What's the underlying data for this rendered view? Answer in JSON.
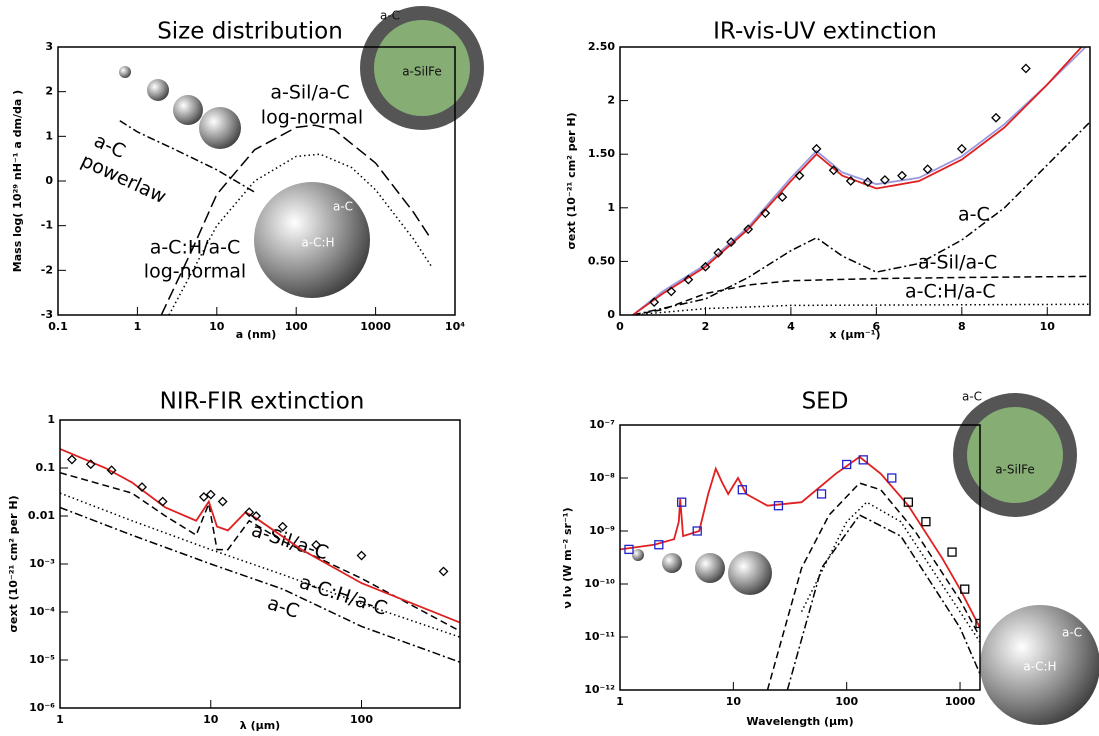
{
  "chart_data": [
    {
      "type": "line",
      "title": "Size distribution",
      "xlabel": "a (nm)",
      "ylabel": "Mass log( 10²⁹ nH⁻¹ a dm/da )",
      "xscale": "log",
      "xlim": [
        0.1,
        10000
      ],
      "ylim": [
        -3,
        3
      ],
      "xticks": [
        0.1,
        1,
        10,
        100,
        1000,
        {
          "value": 10000,
          "label": "10⁴"
        }
      ],
      "yticks": [
        -3,
        -2,
        -1,
        0,
        1,
        2,
        3
      ],
      "annotations": [
        "a-Sil/a-C",
        "log-normal",
        "a-C",
        "powerlaw",
        "a-C:H/a-C",
        "log-normal"
      ],
      "sphere_labels": [
        "a-C",
        "a-SilFe",
        "a-C",
        "a-C:H"
      ],
      "series": [
        {
          "color": "#000",
          "style": "dashdot",
          "x": [
            0.6,
            1,
            3,
            10,
            30
          ],
          "values": [
            1.35,
            1.1,
            0.7,
            0.25,
            -0.25
          ]
        },
        {
          "color": "#000",
          "style": "longdash",
          "x": [
            2,
            5,
            10,
            30,
            100,
            170,
            300,
            1000,
            3000,
            5000
          ],
          "values": [
            -3,
            -1.5,
            -0.3,
            0.7,
            1.2,
            1.25,
            1.15,
            0.4,
            -0.7,
            -1.3
          ]
        },
        {
          "color": "#000",
          "style": "dot",
          "x": [
            2.5,
            10,
            30,
            100,
            200,
            500,
            1000,
            3000,
            5000
          ],
          "values": [
            -3,
            -1,
            0,
            0.55,
            0.6,
            0.3,
            -0.2,
            -1.3,
            -1.9
          ]
        }
      ]
    },
    {
      "type": "line",
      "title": "IR-vis-UV extinction",
      "xlabel": "x (μm⁻¹)",
      "ylabel": "σext (10⁻²¹ cm² per H)",
      "xlim": [
        0,
        11
      ],
      "ylim": [
        0,
        2.5
      ],
      "xticks": [
        0,
        2,
        4,
        6,
        8,
        10
      ],
      "yticks": [
        0,
        {
          "value": 0.5,
          "label": "0.50"
        },
        1,
        {
          "value": 1.5,
          "label": "1.50"
        },
        2,
        {
          "value": 2.5,
          "label": "2.50"
        }
      ],
      "annotations": [
        "a-C",
        "a-Sil/a-C",
        "a-C:H/a-C"
      ],
      "series": [
        {
          "color": "#000",
          "style": "dashdot",
          "x": [
            0.3,
            2,
            3,
            4,
            4.6,
            5.2,
            6,
            7,
            8,
            9,
            10,
            11
          ],
          "values": [
            0,
            0.15,
            0.35,
            0.6,
            0.72,
            0.55,
            0.4,
            0.48,
            0.7,
            1.0,
            1.4,
            1.8
          ]
        },
        {
          "color": "#000",
          "style": "dash",
          "x": [
            0.3,
            1,
            2,
            3,
            4,
            6,
            8,
            11
          ],
          "values": [
            0,
            0.05,
            0.2,
            0.28,
            0.32,
            0.34,
            0.35,
            0.36
          ]
        },
        {
          "color": "#000",
          "style": "dot",
          "x": [
            0.3,
            2,
            4,
            11
          ],
          "values": [
            0,
            0.06,
            0.09,
            0.1
          ]
        },
        {
          "color": "#9999dd",
          "style": "solid",
          "x": [
            0.3,
            1,
            2,
            3,
            4,
            4.6,
            5.2,
            6,
            7,
            8,
            9,
            10,
            10.9
          ],
          "values": [
            0,
            0.22,
            0.47,
            0.82,
            1.28,
            1.53,
            1.33,
            1.22,
            1.28,
            1.48,
            1.78,
            2.15,
            2.5
          ]
        },
        {
          "color": "#e02020",
          "style": "solid",
          "x": [
            0.3,
            1,
            2,
            3,
            4,
            4.6,
            5.2,
            6,
            7,
            8,
            9,
            10,
            10.8
          ],
          "values": [
            0,
            0.2,
            0.45,
            0.8,
            1.25,
            1.5,
            1.3,
            1.18,
            1.25,
            1.45,
            1.75,
            2.15,
            2.5
          ]
        },
        {
          "color": "#000",
          "marker": "diamond",
          "x": [
            0.8,
            1.2,
            1.6,
            2,
            2.3,
            2.6,
            3,
            3.4,
            3.8,
            4.2,
            4.6,
            5,
            5.4,
            5.8,
            6.2,
            6.6,
            7.2,
            8,
            8.8,
            9.5
          ],
          "values": [
            0.12,
            0.22,
            0.33,
            0.45,
            0.58,
            0.68,
            0.8,
            0.95,
            1.1,
            1.3,
            1.55,
            1.35,
            1.25,
            1.24,
            1.26,
            1.3,
            1.36,
            1.55,
            1.84,
            2.3
          ]
        }
      ]
    },
    {
      "type": "line",
      "title": "NIR-FIR extinction",
      "xlabel": "λ (μm)",
      "ylabel": "σext (10⁻²¹ cm² per H)",
      "xscale": "log",
      "yscale": "log",
      "xlim": [
        1,
        450
      ],
      "ylim": [
        1e-06,
        1
      ],
      "xticks": [
        1,
        10,
        100
      ],
      "yticks": [
        {
          "value": 1e-06,
          "label": "10⁻⁶"
        },
        {
          "value": 1e-05,
          "label": "10⁻⁵"
        },
        {
          "value": 0.0001,
          "label": "10⁻⁴"
        },
        {
          "value": 0.001,
          "label": "10⁻³"
        },
        0.01,
        0.1,
        1
      ],
      "annotations": [
        "a-Sil/a-C",
        "a-C:H/a-C",
        "a-C"
      ],
      "series": [
        {
          "color": "#000",
          "style": "dash",
          "x": [
            1,
            3,
            5,
            8,
            9.7,
            11,
            13,
            18,
            30,
            100,
            450
          ],
          "values": [
            0.08,
            0.03,
            0.01,
            0.004,
            0.018,
            0.002,
            0.002,
            0.008,
            0.003,
            0.0005,
            4e-05
          ]
        },
        {
          "color": "#000",
          "style": "dot",
          "x": [
            1,
            3,
            10,
            30,
            100,
            450
          ],
          "values": [
            0.03,
            0.008,
            0.002,
            0.0006,
            0.00015,
            3e-05
          ]
        },
        {
          "color": "#000",
          "style": "dashdot",
          "x": [
            1,
            3,
            10,
            30,
            100,
            450
          ],
          "values": [
            0.015,
            0.004,
            0.001,
            0.0003,
            5e-05,
            9e-06
          ]
        },
        {
          "color": "#e02020",
          "style": "solid",
          "x": [
            1,
            2,
            3,
            5,
            8,
            9.7,
            11,
            13,
            17,
            20,
            40,
            100,
            450
          ],
          "values": [
            0.25,
            0.1,
            0.05,
            0.015,
            0.008,
            0.02,
            0.006,
            0.005,
            0.012,
            0.009,
            0.002,
            0.0004,
            6e-05
          ]
        },
        {
          "color": "#000",
          "marker": "diamond",
          "x": [
            1.2,
            1.6,
            2.2,
            3.5,
            4.8,
            9,
            10,
            12,
            18,
            20,
            30,
            50,
            100,
            350
          ],
          "values": [
            0.15,
            0.12,
            0.09,
            0.04,
            0.02,
            0.025,
            0.028,
            0.02,
            0.012,
            0.01,
            0.006,
            0.0025,
            0.0015,
            0.0007
          ]
        }
      ]
    },
    {
      "type": "line",
      "title": "SED",
      "xlabel": "Wavelength (μm)",
      "ylabel": "ν Iν (W m⁻² sr⁻¹)",
      "xscale": "log",
      "yscale": "log",
      "xlim": [
        1,
        1500
      ],
      "ylim": [
        1e-12,
        1e-07
      ],
      "xticks": [
        1,
        10,
        100,
        1000
      ],
      "yticks": [
        {
          "value": 1e-12,
          "label": "10⁻¹²"
        },
        {
          "value": 1e-11,
          "label": "10⁻¹¹"
        },
        {
          "value": 1e-10,
          "label": "10⁻¹⁰"
        },
        {
          "value": 1e-09,
          "label": "10⁻⁹"
        },
        {
          "value": 1e-08,
          "label": "10⁻⁸"
        },
        {
          "value": 1e-07,
          "label": "10⁻⁷"
        }
      ],
      "sphere_labels": [
        "a-C",
        "a-SilFe",
        "a-C",
        "a-C:H"
      ],
      "series": [
        {
          "color": "#000",
          "style": "dash",
          "x": [
            20,
            40,
            70,
            130,
            200,
            400,
            1000,
            1500
          ],
          "values": [
            1e-12,
            2e-10,
            2e-09,
            8e-09,
            6e-09,
            1e-09,
            5e-11,
            1e-11
          ]
        },
        {
          "color": "#000",
          "style": "dot",
          "x": [
            40,
            100,
            150,
            300,
            1000,
            1500
          ],
          "values": [
            3e-11,
            1.5e-09,
            3.5e-09,
            1.5e-09,
            3e-11,
            8e-12
          ]
        },
        {
          "color": "#000",
          "style": "dashdot",
          "x": [
            30,
            60,
            130,
            300,
            1000,
            1500
          ],
          "values": [
            1e-12,
            2e-10,
            2e-09,
            8e-10,
            1.5e-11,
            2e-12
          ]
        },
        {
          "color": "#e02020",
          "style": "solid",
          "x": [
            1,
            2,
            3,
            3.3,
            3.4,
            3.6,
            5,
            6,
            7,
            8,
            9,
            11,
            13,
            20,
            40,
            80,
            130,
            200,
            350,
            700,
            1000,
            1500
          ],
          "values": [
            4.5e-10,
            5.5e-10,
            7e-10,
            1.5e-09,
            4e-09,
            8e-10,
            1e-09,
            5e-09,
            1.5e-08,
            8e-09,
            5e-09,
            1e-08,
            5e-09,
            3e-09,
            3.5e-09,
            1.2e-08,
            2.5e-08,
            1.2e-08,
            3e-09,
            3e-10,
            8e-11,
            1.5e-11
          ]
        },
        {
          "color": "#2222cc",
          "marker": "square",
          "x": [
            1.2,
            2.2,
            3.5,
            4.8,
            12,
            25,
            60,
            100,
            140,
            250
          ],
          "values": [
            4.5e-10,
            5.5e-10,
            3.5e-09,
            1e-09,
            6e-09,
            3e-09,
            5e-09,
            1.8e-08,
            2.2e-08,
            1e-08
          ]
        },
        {
          "color": "#000",
          "marker": "square",
          "x": [
            350,
            500,
            850,
            1100,
            1500
          ],
          "values": [
            3.5e-09,
            1.5e-09,
            4e-10,
            8e-11,
            1.8e-11
          ]
        }
      ]
    }
  ]
}
